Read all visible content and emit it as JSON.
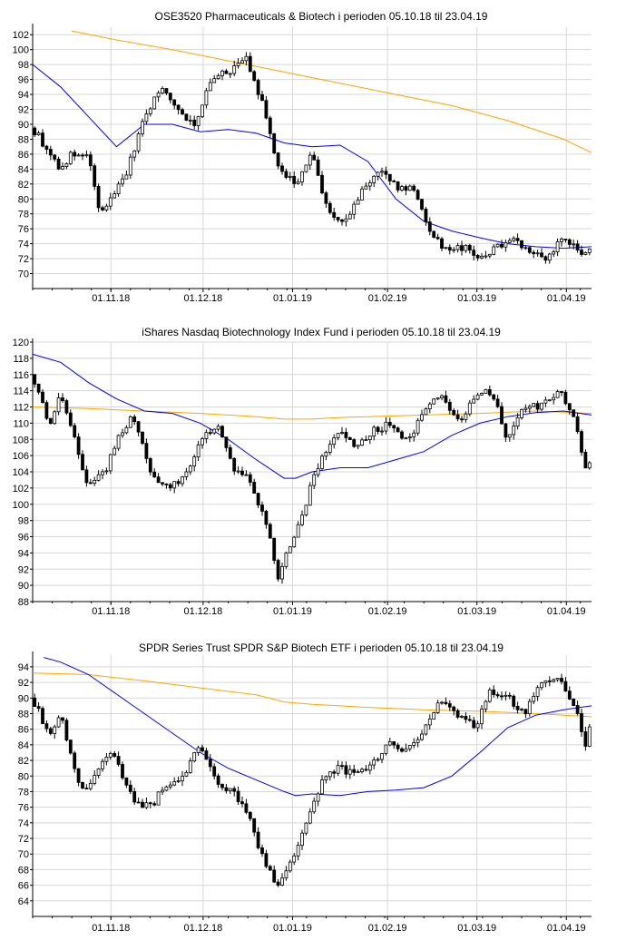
{
  "chart_data": [
    {
      "type": "candlestick",
      "title": "OSE3520 Pharmaceuticals & Biotech i perioden 05.10.18 til 23.04.19",
      "xlabel": "",
      "ylabel": "",
      "ylim": [
        68,
        103
      ],
      "y_ticks": [
        70,
        72,
        74,
        76,
        78,
        80,
        82,
        84,
        86,
        88,
        90,
        92,
        94,
        96,
        98,
        100,
        102
      ],
      "x_ticks": [
        "01.11.18",
        "01.12.18",
        "01.01.19",
        "01.02.19",
        "01.03.19",
        "01.04.19"
      ],
      "grid": true,
      "colors": {
        "ma_long": "#ffa500",
        "ma_short": "#0000ff",
        "candle": "#000000"
      },
      "series": [
        {
          "name": "",
          "kind": "close",
          "x": [
            0,
            10,
            14,
            20,
            24,
            28,
            34,
            40,
            46,
            52,
            58,
            64,
            70,
            76,
            82,
            88,
            94,
            100,
            106,
            112,
            118,
            124,
            130,
            136,
            142,
            148,
            154,
            160,
            166,
            172,
            178,
            184,
            190,
            195,
            200
          ],
          "values": [
            89.5,
            84,
            86,
            85.5,
            78,
            80,
            84,
            91,
            95,
            92,
            90,
            96,
            97,
            99,
            93,
            84,
            82,
            86,
            78,
            77,
            81,
            84,
            81.5,
            81.5,
            76,
            73,
            73.5,
            72,
            73.5,
            75,
            73,
            72,
            75,
            73,
            73
          ]
        },
        {
          "name": "",
          "kind": "ma_short",
          "x": [
            0,
            10,
            20,
            30,
            40,
            50,
            60,
            70,
            80,
            90,
            100,
            110,
            120,
            130,
            140,
            150,
            160,
            170,
            180,
            190,
            200
          ],
          "values": [
            98,
            95,
            91,
            87,
            90,
            90,
            89,
            89.3,
            88.8,
            87.5,
            87,
            87.2,
            85,
            80,
            77,
            75.7,
            74.8,
            74,
            73.6,
            73.4,
            73.6
          ]
        },
        {
          "name": "",
          "kind": "ma_long",
          "x": [
            14,
            30,
            50,
            70,
            90,
            110,
            130,
            150,
            170,
            190,
            200
          ],
          "values": [
            102.5,
            101.3,
            100,
            98.5,
            97,
            95.5,
            94,
            92.5,
            90.5,
            88,
            86.2
          ]
        }
      ]
    },
    {
      "type": "candlestick",
      "title": "iShares Nasdaq Biotechnology Index Fund i perioden 05.10.18 til 23.04.19",
      "xlabel": "",
      "ylabel": "",
      "ylim": [
        88,
        120
      ],
      "y_ticks": [
        88,
        90,
        92,
        94,
        96,
        98,
        100,
        102,
        104,
        106,
        108,
        110,
        112,
        114,
        116,
        118,
        120
      ],
      "x_ticks": [
        "01.11.18",
        "01.12.18",
        "01.01.19",
        "01.02.19",
        "01.03.19",
        "01.04.19"
      ],
      "grid": true,
      "colors": {
        "ma_long": "#ffa500",
        "ma_short": "#0000ff",
        "candle": "#000000"
      },
      "series": [
        {
          "name": "",
          "kind": "close",
          "x": [
            0,
            6,
            10,
            16,
            20,
            26,
            30,
            36,
            42,
            48,
            54,
            60,
            66,
            72,
            78,
            84,
            88,
            92,
            96,
            100,
            104,
            110,
            116,
            122,
            128,
            134,
            140,
            146,
            152,
            158,
            164,
            170,
            176,
            182,
            188,
            194,
            198,
            200
          ],
          "values": [
            116,
            110,
            114,
            107,
            102,
            104,
            108,
            111,
            104,
            102,
            103,
            108,
            110,
            104,
            103,
            97,
            91,
            95,
            98,
            103,
            106,
            109,
            107,
            109,
            110,
            108,
            111,
            114,
            110,
            113,
            114,
            108,
            112,
            112,
            114,
            111,
            104,
            106
          ]
        },
        {
          "name": "",
          "kind": "ma_short",
          "x": [
            0,
            10,
            20,
            30,
            40,
            50,
            60,
            70,
            80,
            90,
            94,
            100,
            110,
            120,
            130,
            140,
            150,
            160,
            170,
            180,
            190,
            200
          ],
          "values": [
            118.5,
            117.5,
            115,
            113,
            111.5,
            111.2,
            110,
            108,
            105.5,
            103.2,
            103.2,
            104,
            104.5,
            104.5,
            105.5,
            106.5,
            108.5,
            110,
            110.8,
            111.3,
            111.5,
            111
          ]
        },
        {
          "name": "",
          "kind": "ma_long",
          "x": [
            0,
            20,
            40,
            60,
            80,
            90,
            100,
            110,
            120,
            140,
            160,
            180,
            200
          ],
          "values": [
            112,
            111.8,
            111.5,
            111.2,
            110.8,
            110.5,
            110.5,
            110.7,
            110.8,
            111,
            111.2,
            111.5,
            111.2
          ]
        }
      ]
    },
    {
      "type": "candlestick",
      "title": "SPDR Series Trust  SPDR S&P Biotech ETF i perioden 05.10.18 til 23.04.19",
      "xlabel": "",
      "ylabel": "",
      "ylim": [
        62,
        95.5
      ],
      "y_ticks": [
        64,
        66,
        68,
        70,
        72,
        74,
        76,
        78,
        80,
        82,
        84,
        86,
        88,
        90,
        92,
        94
      ],
      "x_ticks": [
        "01.11.18",
        "01.12.18",
        "01.01.19",
        "01.02.19",
        "01.03.19",
        "01.04.19"
      ],
      "grid": true,
      "colors": {
        "ma_long": "#ffa500",
        "ma_short": "#0000ff",
        "candle": "#000000"
      },
      "series": [
        {
          "name": "",
          "kind": "close",
          "x": [
            0,
            6,
            10,
            16,
            20,
            26,
            30,
            36,
            42,
            48,
            54,
            60,
            66,
            72,
            78,
            84,
            88,
            92,
            96,
            100,
            104,
            110,
            116,
            122,
            128,
            134,
            140,
            146,
            150,
            154,
            158,
            164,
            170,
            176,
            182,
            188,
            194,
            198,
            200
          ],
          "values": [
            90,
            85,
            88,
            79,
            78,
            83,
            82,
            77,
            76,
            79,
            80,
            84,
            79,
            78,
            74,
            68,
            66,
            69,
            72,
            76,
            80,
            81,
            80,
            82,
            84,
            83,
            86,
            90,
            88,
            88,
            86,
            91,
            90,
            88,
            92,
            93,
            89,
            84,
            87
          ]
        },
        {
          "name": "",
          "kind": "ma_short",
          "x": [
            4,
            10,
            20,
            30,
            40,
            50,
            60,
            70,
            80,
            90,
            94,
            100,
            110,
            120,
            130,
            140,
            150,
            160,
            170,
            180,
            190,
            200
          ],
          "values": [
            95.2,
            94.6,
            93,
            90.5,
            88,
            85.5,
            83,
            81,
            79.5,
            78,
            77.5,
            77.7,
            77.5,
            78,
            78.2,
            78.5,
            80,
            83,
            86.2,
            87.8,
            88.5,
            89
          ]
        },
        {
          "name": "",
          "kind": "ma_long",
          "x": [
            0,
            20,
            40,
            60,
            80,
            90,
            100,
            120,
            140,
            160,
            180,
            200
          ],
          "values": [
            93.2,
            93,
            92.2,
            91.3,
            90.4,
            89.5,
            89.2,
            88.8,
            88.5,
            88.3,
            88,
            87.6
          ]
        }
      ]
    }
  ]
}
